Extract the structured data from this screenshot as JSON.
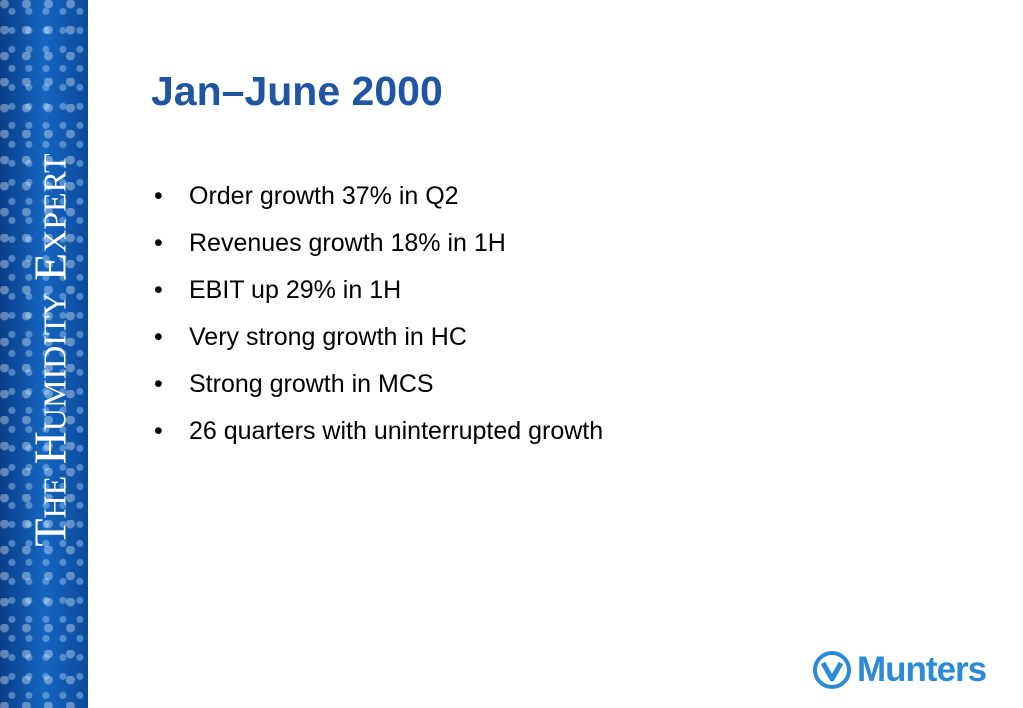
{
  "sidebar": {
    "tagline": "The Humidity Expert"
  },
  "header": {
    "title": "Jan–June 2000"
  },
  "bullets": [
    "Order growth 37% in Q2",
    "Revenues growth 18% in 1H",
    "EBIT up 29% in 1H",
    "Very strong growth in HC",
    "Strong growth in MCS",
    "26 quarters with uninterrupted growth"
  ],
  "logo": {
    "name": "Munters"
  }
}
